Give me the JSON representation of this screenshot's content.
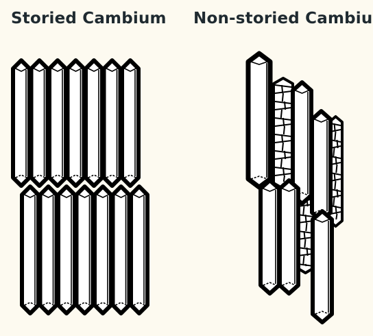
{
  "titles": {
    "storied": "Storied Cambium",
    "non_storied": "Non-storied Cambium"
  },
  "colors": {
    "background": "#fdfaf0",
    "cell_fill": "#ffffff",
    "outline": "#000000",
    "title_text": "#1f2a30"
  }
}
